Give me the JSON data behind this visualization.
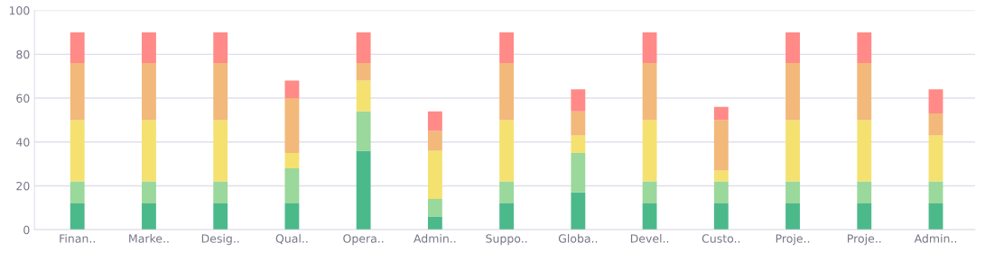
{
  "chart_data": {
    "type": "bar",
    "stacked": true,
    "categories": [
      "Finan..",
      "Marke..",
      "Desig..",
      "Qual..",
      "Opera..",
      "Admin..",
      "Suppo..",
      "Globa..",
      "Devel..",
      "Custo..",
      "Proje..",
      "Proje..",
      "Admin.."
    ],
    "series": [
      {
        "color": "#4cb98b",
        "values": [
          12,
          12,
          12,
          12,
          36,
          6,
          12,
          17,
          12,
          12,
          12,
          12,
          12
        ]
      },
      {
        "color": "#9ad89b",
        "values": [
          10,
          10,
          10,
          16,
          18,
          8,
          10,
          18,
          10,
          10,
          10,
          10,
          10
        ]
      },
      {
        "color": "#f5e16f",
        "values": [
          28,
          28,
          28,
          7,
          14,
          22,
          28,
          8,
          28,
          5,
          28,
          28,
          21
        ]
      },
      {
        "color": "#f2b97a",
        "values": [
          26,
          26,
          26,
          25,
          8,
          9,
          26,
          11,
          26,
          23,
          26,
          26,
          10
        ]
      },
      {
        "color": "#ff8a87",
        "values": [
          14,
          14,
          14,
          8,
          14,
          9,
          14,
          10,
          14,
          6,
          14,
          14,
          11
        ]
      }
    ],
    "ylim": [
      0,
      100
    ],
    "yticks": [
      0,
      20,
      40,
      60,
      80,
      100
    ],
    "grid": "y"
  }
}
